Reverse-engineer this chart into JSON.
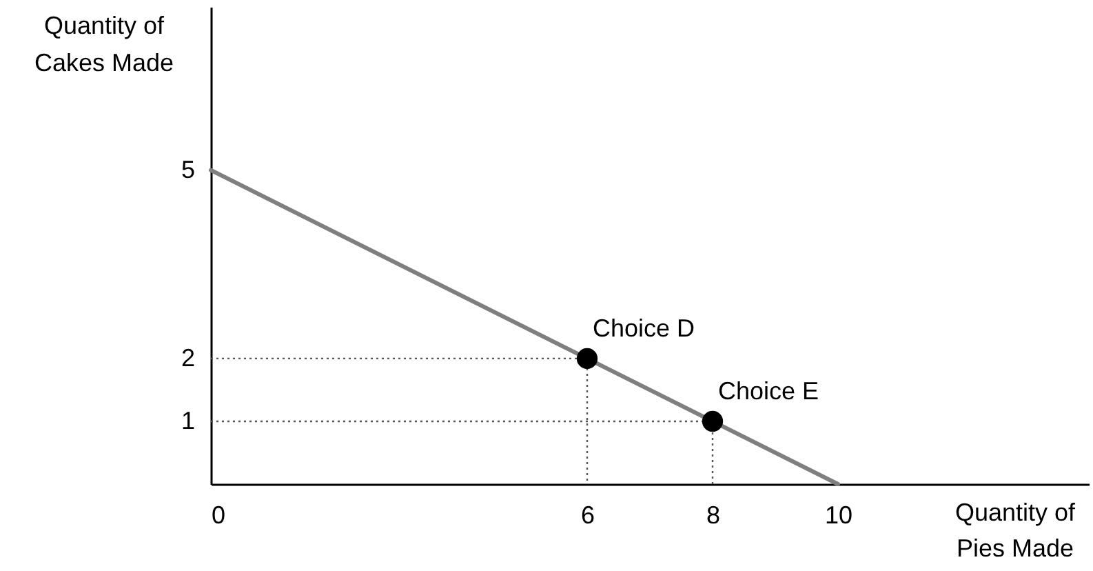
{
  "chart_data": {
    "type": "line",
    "xlabel": "Quantity of Pies Made",
    "ylabel": "Quantity of Cakes Made",
    "xlim": [
      0,
      14
    ],
    "ylim": [
      0,
      7.6
    ],
    "xticks": [
      0,
      6,
      8,
      10
    ],
    "yticks": [
      1,
      2,
      5
    ],
    "grid": false,
    "series": [
      {
        "color": "#7f7f7f",
        "x": [
          0,
          10
        ],
        "values": [
          5,
          0
        ],
        "line_style": "solid"
      },
      {
        "color": "#555555",
        "x": [
          0,
          6,
          6
        ],
        "values": [
          2,
          2,
          0
        ],
        "line_style": "dotted"
      },
      {
        "color": "#555555",
        "x": [
          0,
          8,
          8
        ],
        "values": [
          1,
          1,
          0
        ],
        "line_style": "dotted"
      },
      {
        "type": "scatter",
        "color": "#000000",
        "x": [
          6,
          8
        ],
        "values": [
          2,
          1
        ],
        "marker": "circle"
      }
    ],
    "annotations": [
      {
        "text": "Choice D",
        "x": 6,
        "y": 2
      },
      {
        "text": "Choice E",
        "x": 8,
        "y": 1
      }
    ]
  }
}
